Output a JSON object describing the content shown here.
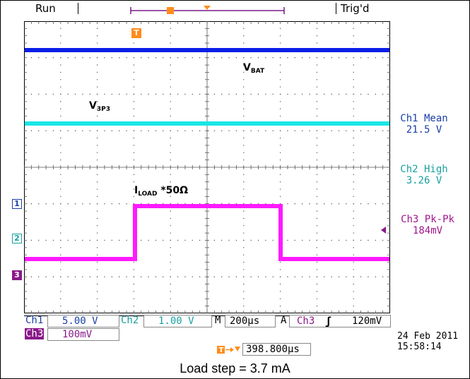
{
  "status": {
    "run": "Run",
    "trig": "Trig'd"
  },
  "traces": {
    "vbat": {
      "label": "V",
      "sub": "BAT",
      "color": "#0a1ee8"
    },
    "v3p3": {
      "label": "V",
      "sub": "3P3",
      "color": "#1ae6e6"
    },
    "iload": {
      "label": "I",
      "sub": "LOAD",
      "suffix": " *50Ω",
      "color": "#ff1aff"
    }
  },
  "markers": {
    "ch1": "1",
    "ch2": "2",
    "ch3": "3",
    "trigger": "T"
  },
  "measurements": [
    {
      "title": "Ch1 Mean",
      "value": "21.5 V",
      "color": "#1a3fa8"
    },
    {
      "title": "Ch2 High",
      "value": "3.26 V",
      "color": "#1aa0a0"
    },
    {
      "title": "Ch3 Pk-Pk",
      "value": "184mV",
      "color": "#a0148c"
    }
  ],
  "settings": {
    "ch1_label": "Ch1",
    "ch1_scale": "5.00 V",
    "ch2_label": "Ch2",
    "ch2_scale": "1.00 V",
    "ch3_label": "Ch3",
    "ch3_scale": "100mV",
    "m_label": "M",
    "timebase": "200µs",
    "a_label": "A",
    "trig_src": "Ch3",
    "trig_slope": "ʃ",
    "trig_level": "120mV",
    "trig_pos": "398.800µs"
  },
  "datetime": {
    "date": "24 Feb  2011",
    "time": "15:58:14"
  },
  "caption": "Load step = 3.7 mA"
}
